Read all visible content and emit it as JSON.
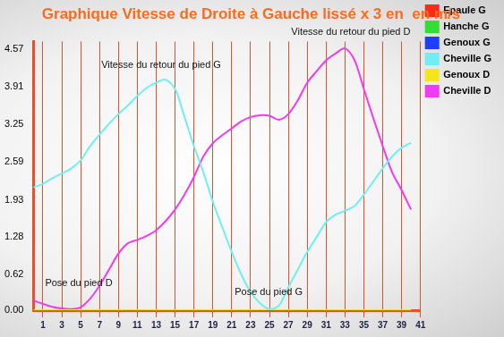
{
  "chart_data": {
    "type": "line",
    "title": "Graphique Vitesse de Droite à Gauche lissé x 3 en  en m/s",
    "annotations": [
      "Vitesse du retour du pied G",
      "Vitesse du retour du pied D",
      "Pose du pied D",
      "Pose du pied G"
    ],
    "categories": [
      null,
      "1",
      null,
      "3",
      null,
      "5",
      null,
      "7",
      null,
      "9",
      null,
      "11",
      null,
      "13",
      null,
      "15",
      null,
      "17",
      null,
      "19",
      null,
      "21",
      null,
      "23",
      null,
      "25",
      null,
      "27",
      null,
      "29",
      null,
      "31",
      null,
      "33",
      null,
      "35",
      null,
      "37",
      null,
      "39",
      null,
      "41"
    ],
    "series": [
      {
        "name": "Epaule G",
        "color": "#ff2a1a",
        "values": [
          null,
          null,
          null,
          null,
          null,
          null,
          null,
          null,
          null,
          null,
          null,
          null,
          null,
          null,
          null,
          null,
          null,
          null,
          null,
          null,
          null,
          null,
          null,
          null,
          null,
          null,
          null,
          null,
          null,
          null,
          null,
          null,
          null,
          null,
          null,
          null,
          null,
          null,
          null,
          null,
          null,
          null
        ]
      },
      {
        "name": "Hanche G",
        "color": "#33dd33",
        "values": [
          null,
          null,
          null,
          null,
          null,
          null,
          null,
          null,
          null,
          null,
          null,
          null,
          null,
          null,
          null,
          null,
          null,
          null,
          null,
          null,
          null,
          null,
          null,
          null,
          null,
          null,
          null,
          null,
          null,
          null,
          null,
          null,
          null,
          null,
          null,
          null,
          null,
          null,
          null,
          null,
          null,
          null
        ]
      },
      {
        "name": "Genoux G",
        "color": "#1a3fff",
        "values": [
          null,
          null,
          null,
          null,
          null,
          null,
          null,
          null,
          null,
          null,
          null,
          null,
          null,
          null,
          null,
          null,
          null,
          null,
          null,
          null,
          null,
          null,
          null,
          null,
          null,
          null,
          null,
          null,
          null,
          null,
          null,
          null,
          null,
          null,
          null,
          null,
          null,
          null,
          null,
          null,
          null,
          null
        ]
      },
      {
        "name": "Cheville G",
        "color": "#6ff0f0",
        "values": [
          2.15,
          2.21,
          2.31,
          2.39,
          2.48,
          2.62,
          2.87,
          3.07,
          3.26,
          3.43,
          3.58,
          3.75,
          3.89,
          3.98,
          4.03,
          3.87,
          3.38,
          2.87,
          2.41,
          1.9,
          1.45,
          1.02,
          0.63,
          0.32,
          0.12,
          0.02,
          0.08,
          0.4,
          0.71,
          1.02,
          1.28,
          1.54,
          1.67,
          1.74,
          1.82,
          2.02,
          2.25,
          2.48,
          2.69,
          2.84,
          2.93,
          null
        ]
      },
      {
        "name": "Genoux D",
        "color": "#f5e61a",
        "values": [
          0,
          0,
          0,
          0,
          0,
          0,
          0,
          0,
          0,
          0,
          0,
          0,
          0,
          0,
          0,
          0,
          0,
          0,
          0,
          0,
          0,
          0,
          0,
          0,
          0,
          0,
          0,
          0,
          0,
          0,
          0,
          0,
          0,
          0,
          0,
          0,
          0,
          0,
          0,
          0,
          0,
          null
        ]
      },
      {
        "name": "Cheville D",
        "color": "#f03cf0",
        "values": [
          0.17,
          0.11,
          0.06,
          0.03,
          0.02,
          0.05,
          0.2,
          0.43,
          0.71,
          0.99,
          1.17,
          1.23,
          1.3,
          1.4,
          1.56,
          1.76,
          2.02,
          2.33,
          2.69,
          2.92,
          3.06,
          3.18,
          3.3,
          3.38,
          3.41,
          3.4,
          3.33,
          3.43,
          3.67,
          3.98,
          4.18,
          4.37,
          4.49,
          4.58,
          4.38,
          3.87,
          3.36,
          2.87,
          2.41,
          2.1,
          1.76,
          null
        ]
      }
    ],
    "ylim": [
      0,
      4.7
    ],
    "yticks": [
      {
        "value": 0,
        "label": "0.00"
      },
      0.62,
      1.28,
      1.93,
      2.59,
      3.25,
      3.91,
      4.57
    ],
    "grid": true,
    "legend": "right"
  }
}
